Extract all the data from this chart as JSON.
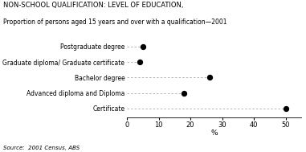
{
  "title_line1": "NON-SCHOOL QUALIFICATION: LEVEL OF EDUCATION,",
  "title_line2": "Proportion of persons aged 15 years and over with a qualification—2001",
  "categories": [
    "Certificate",
    "Advanced diploma and Diploma",
    "Bachelor degree",
    "Graduate diploma/ Graduate certificate",
    "Postgraduate degree"
  ],
  "values": [
    50,
    18,
    26,
    4,
    5
  ],
  "xlabel": "%",
  "xlim": [
    0,
    55
  ],
  "xticks": [
    0,
    10,
    20,
    30,
    40,
    50
  ],
  "source": "Source:  2001 Census, ABS",
  "dot_color": "#000000",
  "dot_size": 18,
  "line_color": "#aaaaaa",
  "background_color": "#ffffff",
  "title1_fontsize": 6.0,
  "title2_fontsize": 5.5,
  "ylabel_fontsize": 5.5,
  "xlabel_fontsize": 6.5,
  "xtick_fontsize": 6.0,
  "source_fontsize": 5.0
}
